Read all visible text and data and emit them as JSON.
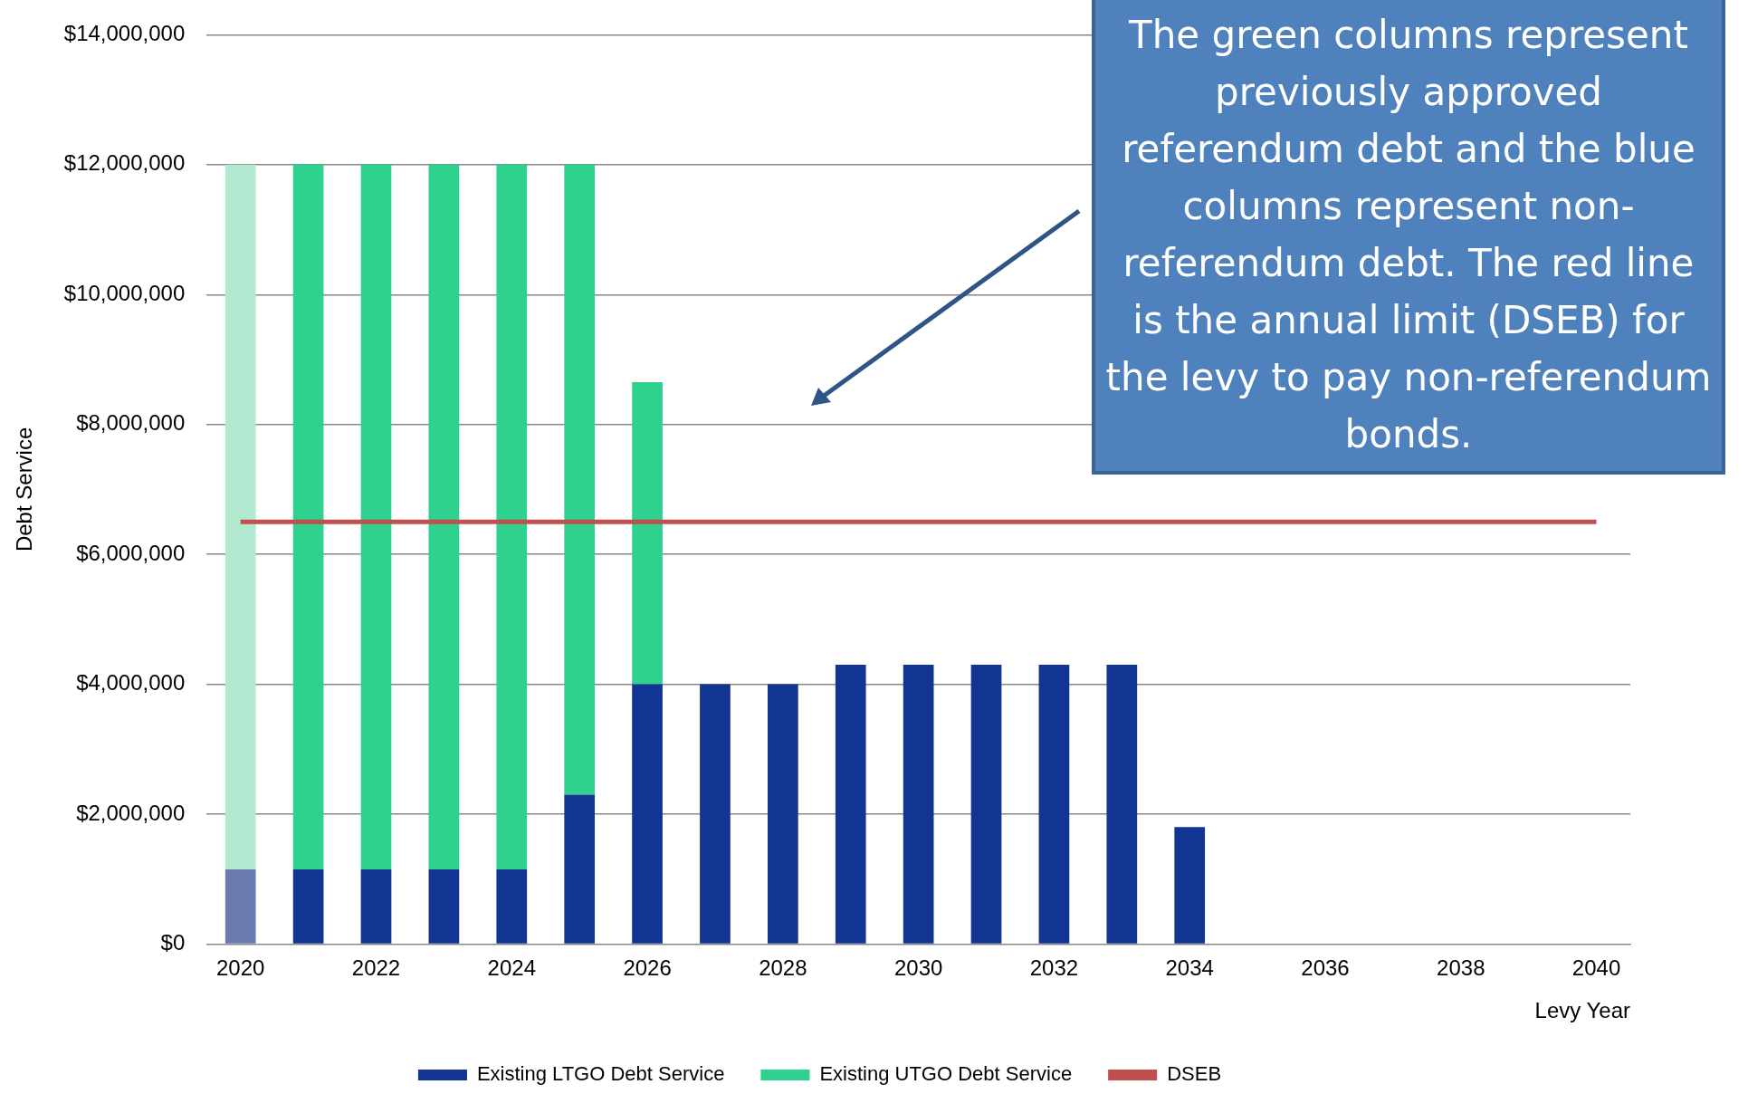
{
  "chart_data": {
    "type": "bar",
    "stacked": true,
    "xlabel": "Levy Year",
    "ylabel": "Debt Service",
    "categories": [
      "2020",
      null,
      "2022",
      null,
      "2024",
      null,
      "2026",
      null,
      "2028",
      null,
      "2030",
      null,
      "2032",
      null,
      "2034",
      null,
      "2036",
      null,
      "2038",
      null,
      "2040"
    ],
    "series": [
      {
        "name": "Existing LTGO Debt Service",
        "color": "#123594",
        "colors": [
          "#6a7bb0",
          "#123594",
          "#123594",
          "#123594",
          "#123594",
          "#123594",
          "#123594",
          "#123594",
          "#123594",
          "#123594",
          "#123594",
          "#123594",
          "#123594",
          "#123594",
          "#123594",
          "#123594",
          "#123594",
          "#123594",
          "#123594",
          "#123594",
          "#123594"
        ],
        "values": [
          1150000.0,
          1150000.0,
          1150000.0,
          1150000.0,
          1150000.0,
          2300000.0,
          4000000.0,
          4000000.0,
          4000000.0,
          4300000.0,
          4300000.0,
          4300000.0,
          4300000.0,
          4300000.0,
          1800000.0,
          null,
          null,
          null,
          null,
          null,
          null
        ]
      },
      {
        "name": "Existing UTGO Debt Service",
        "color": "#2fd18f",
        "colors": [
          "#b2e9d0",
          "#2fd18f",
          "#2fd18f",
          "#2fd18f",
          "#2fd18f",
          "#2fd18f",
          "#2fd18f",
          "#2fd18f",
          "#2fd18f",
          "#2fd18f",
          "#2fd18f",
          "#2fd18f",
          "#2fd18f",
          "#2fd18f",
          "#2fd18f",
          "#2fd18f",
          "#2fd18f",
          "#2fd18f",
          "#2fd18f",
          "#2fd18f",
          "#2fd18f"
        ],
        "values": [
          10850000.0,
          10850000.0,
          10850000.0,
          10850000.0,
          10850000.0,
          9700000.0,
          4650000.0,
          null,
          null,
          null,
          null,
          null,
          null,
          null,
          null,
          null,
          null,
          null,
          null,
          null,
          null
        ]
      },
      {
        "name": "DSEB",
        "type": "line",
        "color": "#c0504d",
        "values": [
          6500000.0,
          6500000.0,
          6500000.0,
          6500000.0,
          6500000.0,
          6500000.0,
          6500000.0,
          6500000.0,
          6500000.0,
          6500000.0,
          6500000.0,
          6500000.0,
          6500000.0,
          6500000.0,
          6500000.0,
          6500000.0,
          6500000.0,
          6500000.0,
          6500000.0,
          6500000.0,
          6500000.0
        ]
      }
    ],
    "ylim": [
      0,
      14000000
    ],
    "yticks": [
      {
        "value": 0,
        "label": "$0"
      },
      {
        "value": 2000000,
        "label": "$2,000,000"
      },
      {
        "value": 4000000,
        "label": "$4,000,000"
      },
      {
        "value": 6000000,
        "label": "$6,000,000"
      },
      {
        "value": 8000000,
        "label": "$8,000,000"
      },
      {
        "value": 10000000,
        "label": "$10,000,000"
      },
      {
        "value": 12000000,
        "label": "$12,000,000"
      },
      {
        "value": 14000000,
        "label": "$14,000,000"
      }
    ],
    "grid": "y",
    "legend": "bottom",
    "annotations": [
      "The green columns represent previously approved referendum debt and the blue columns represent non-referendum debt. The red line is the annual limit (DSEB) for the levy to pay non-referendum bonds."
    ]
  }
}
